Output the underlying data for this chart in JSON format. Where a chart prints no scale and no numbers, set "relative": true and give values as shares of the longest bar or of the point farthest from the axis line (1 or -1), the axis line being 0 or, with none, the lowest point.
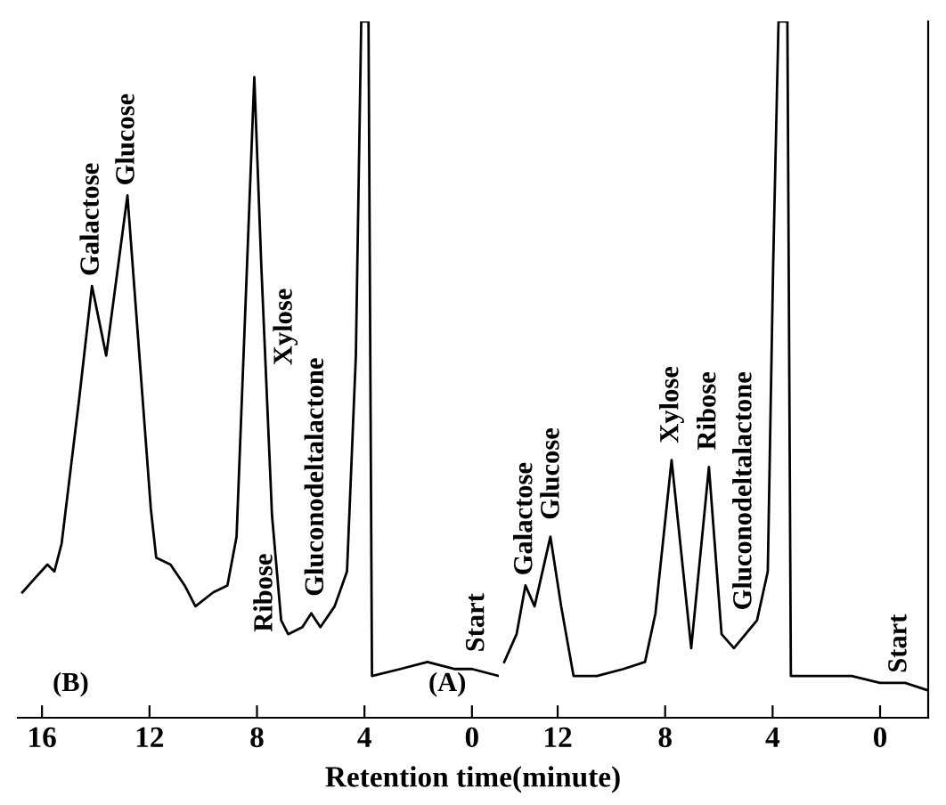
{
  "chart_data": [
    {
      "type": "line",
      "relative": true,
      "xlabel": "Retention time(minute)",
      "xlim": [
        16.9,
        -1.0
      ],
      "xticks": [
        16,
        12,
        8,
        4,
        0
      ],
      "tick_labels": "x",
      "grid": false,
      "legend": false,
      "series": [
        {
          "color": "#000000",
          "x": [
            16.73,
            16.27,
            15.8,
            15.54,
            15.27,
            14.61,
            14.14,
            13.61,
            12.82,
            11.95,
            11.75,
            11.22,
            10.69,
            10.29,
            9.63,
            9.1,
            8.76,
            8.5,
            8.1,
            7.84,
            7.44,
            7.1,
            6.84,
            6.31,
            5.98,
            5.64,
            5.11,
            4.65,
            4.32,
            4.12,
            3.85,
            3.72,
            2.66,
            1.66,
            0.66,
            0.0,
            -1.0
          ],
          "values": [
            0.18,
            0.2,
            0.22,
            0.21,
            0.25,
            0.46,
            0.62,
            0.52,
            0.75,
            0.3,
            0.23,
            0.22,
            0.19,
            0.16,
            0.18,
            0.19,
            0.26,
            0.52,
            0.92,
            0.65,
            0.29,
            0.14,
            0.12,
            0.13,
            0.15,
            0.13,
            0.16,
            0.21,
            0.52,
            1.0,
            1.0,
            0.06,
            0.07,
            0.08,
            0.07,
            0.07,
            0.06
          ]
        }
      ],
      "annotations": [
        "(B)",
        {
          "text": "Galactose",
          "x": 14.14,
          "y": 0.62
        },
        {
          "text": "Glucose",
          "x": 12.82,
          "y": 0.75
        },
        "Xylose",
        "Ribose",
        {
          "text": "Gluconodeltalactone",
          "x": 5.78,
          "y": 0.16
        },
        {
          "text": "Start",
          "x": -0.2,
          "y": 0.08
        }
      ]
    },
    {
      "type": "line",
      "relative": true,
      "xlim": [
        14.19,
        -1.79
      ],
      "xticks": [
        12,
        8,
        4,
        0
      ],
      "tick_labels": "x",
      "grid": false,
      "legend": false,
      "series": [
        {
          "color": "#000000",
          "x": [
            13.99,
            13.53,
            13.2,
            12.86,
            12.27,
            11.87,
            11.41,
            10.54,
            9.55,
            8.75,
            8.36,
            7.76,
            7.03,
            6.37,
            5.9,
            5.44,
            4.58,
            4.18,
            3.98,
            3.78,
            3.45,
            3.32,
            2.25,
            1.06,
            0.0,
            -0.93,
            -1.72
          ],
          "values": [
            0.08,
            0.12,
            0.19,
            0.16,
            0.26,
            0.16,
            0.06,
            0.06,
            0.07,
            0.08,
            0.15,
            0.37,
            0.1,
            0.36,
            0.12,
            0.1,
            0.14,
            0.21,
            0.65,
            1.0,
            1.0,
            0.06,
            0.06,
            0.06,
            0.05,
            0.05,
            0.04
          ]
        }
      ],
      "annotations": [
        "(A)",
        {
          "text": "Galactose",
          "x": 13.2,
          "y": 0.19
        },
        {
          "text": "Glucose",
          "x": 12.2,
          "y": 0.27
        },
        {
          "text": "Xylose",
          "x": 7.76,
          "y": 0.38
        },
        {
          "text": "Ribose",
          "x": 6.37,
          "y": 0.37
        },
        {
          "text": "Gluconodeltalactone",
          "x": 5.04,
          "y": 0.14
        },
        {
          "text": "Start",
          "x": -0.73,
          "y": 0.05
        }
      ]
    }
  ]
}
